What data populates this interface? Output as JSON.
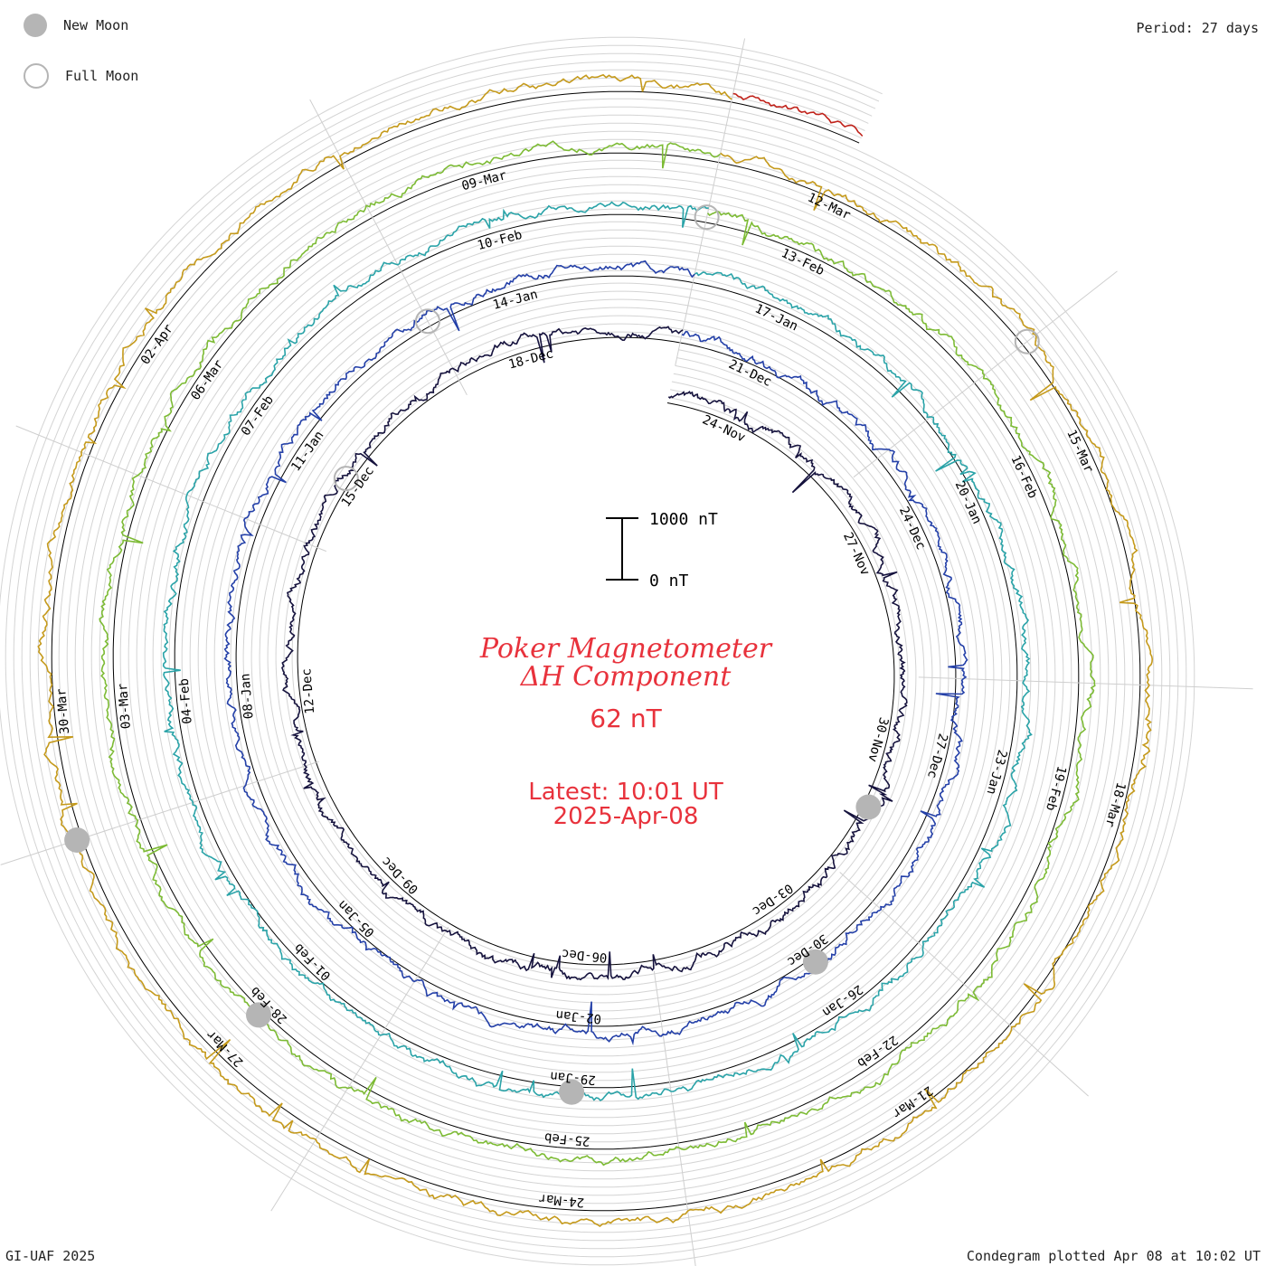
{
  "legend": {
    "new_moon_label": "New Moon",
    "full_moon_label": "Full Moon",
    "moon_color": "#b5b5b5"
  },
  "period_label": "Period: 27 days",
  "scale": {
    "top_label": "1000 nT",
    "bottom_label": "0 nT"
  },
  "center": {
    "title_line1": "Poker Magnetometer",
    "title_line2": "ΔH Component",
    "current_value": "62 nT",
    "latest_line1": "Latest: 10:01 UT",
    "latest_line2": "2025-Apr-08",
    "color": "#e8323c"
  },
  "footer": {
    "left": "GI-UAF 2025",
    "right": "Condegram plotted Apr 08 at 10:02 UT"
  },
  "chart_data": {
    "type": "line",
    "chart_style": "polar spiral condegram",
    "period_days": 27,
    "x_units": "date",
    "y_units": "nT",
    "y_scale_bar": [
      0,
      1000
    ],
    "series": [
      {
        "color": "#15123d",
        "start": "2024-11-23",
        "end": "2024-12-20",
        "date_labels": [
          "24-Nov",
          "27-Nov",
          "30-Nov",
          "03-Dec",
          "06-Dec",
          "09-Dec",
          "12-Dec",
          "15-Dec",
          "18-Dec"
        ]
      },
      {
        "color": "#2440a8",
        "start": "2024-12-20",
        "end": "2025-01-16",
        "date_labels": [
          "21-Dec",
          "24-Dec",
          "27-Dec",
          "30-Dec",
          "02-Jan",
          "05-Jan",
          "08-Jan",
          "11-Jan",
          "14-Jan"
        ]
      },
      {
        "color": "#2aa3a8",
        "start": "2025-01-16",
        "end": "2025-02-12",
        "date_labels": [
          "17-Jan",
          "20-Jan",
          "23-Jan",
          "26-Jan",
          "29-Jan",
          "01-Feb",
          "04-Feb",
          "07-Feb",
          "10-Feb"
        ]
      },
      {
        "color": "#7dbb35",
        "start": "2025-02-12",
        "end": "2025-03-11",
        "date_labels": [
          "13-Feb",
          "16-Feb",
          "19-Feb",
          "22-Feb",
          "25-Feb",
          "28-Feb",
          "03-Mar",
          "06-Mar",
          "09-Mar"
        ]
      },
      {
        "color": "#c59a1c",
        "start": "2025-03-11",
        "end": "2025-04-07",
        "date_labels": [
          "12-Mar",
          "15-Mar",
          "18-Mar",
          "21-Mar",
          "24-Mar",
          "27-Mar",
          "30-Mar",
          "02-Apr"
        ]
      },
      {
        "color": "#c0221a",
        "start": "2025-04-07",
        "end": "2025-04-08",
        "date_labels": []
      }
    ],
    "new_moons": [
      "2024-12-01",
      "2024-12-30",
      "2025-01-29",
      "2025-02-28",
      "2025-03-29"
    ],
    "full_moons": [
      "2024-12-15",
      "2025-01-13",
      "2025-02-12",
      "2025-03-14"
    ]
  }
}
